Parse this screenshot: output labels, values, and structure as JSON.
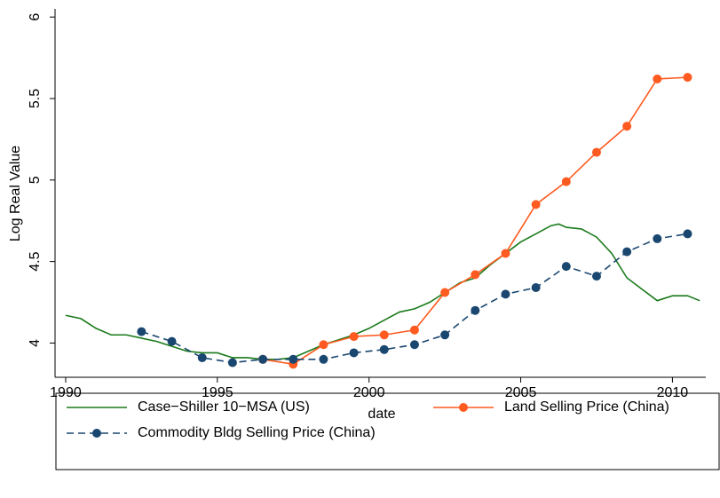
{
  "chart_data": {
    "type": "line",
    "xlabel": "date",
    "ylabel": "Log Real Value",
    "xlim": [
      1989.65,
      2011.1
    ],
    "xticks": [
      1990,
      1995,
      2000,
      2005,
      2010
    ],
    "ylim": [
      3.79,
      6.05
    ],
    "yticks": [
      4,
      4.5,
      5,
      5.5,
      6
    ],
    "grid": false,
    "legend": "bottom",
    "series": [
      {
        "name": "Case−Shiller 10−MSA (US)",
        "color": "#1a7a1a",
        "style": "solid",
        "markers": false,
        "x": [
          1990,
          1990.5,
          1991,
          1991.5,
          1992,
          1992.5,
          1993,
          1993.5,
          1994,
          1994.5,
          1995,
          1995.5,
          1996,
          1996.5,
          1997,
          1997.5,
          1998,
          1998.5,
          1999,
          1999.5,
          2000,
          2000.5,
          2001,
          2001.5,
          2002,
          2002.5,
          2003,
          2003.5,
          2004,
          2004.5,
          2005,
          2005.5,
          2006,
          2006.25,
          2006.5,
          2007,
          2007.5,
          2008,
          2008.5,
          2009,
          2009.5,
          2010,
          2010.5,
          2010.9
        ],
        "values": [
          4.17,
          4.15,
          4.09,
          4.05,
          4.05,
          4.03,
          4.01,
          3.98,
          3.95,
          3.94,
          3.94,
          3.91,
          3.91,
          3.9,
          3.9,
          3.91,
          3.95,
          3.99,
          4.02,
          4.05,
          4.09,
          4.14,
          4.19,
          4.21,
          4.25,
          4.31,
          4.37,
          4.4,
          4.48,
          4.55,
          4.62,
          4.67,
          4.72,
          4.73,
          4.71,
          4.7,
          4.65,
          4.55,
          4.4,
          4.33,
          4.26,
          4.29,
          4.29,
          4.26
        ]
      },
      {
        "name": "Land Selling Price (China)",
        "color": "#ff5a1f",
        "style": "solid",
        "markers": true,
        "x": [
          1996.5,
          1997.5,
          1998.5,
          1999.5,
          2000.5,
          2001.5,
          2002.5,
          2003.5,
          2004.5,
          2005.5,
          2006.5,
          2007.5,
          2008.5,
          2009.5,
          2010.5
        ],
        "values": [
          3.9,
          3.87,
          3.99,
          4.04,
          4.05,
          4.08,
          4.31,
          4.42,
          4.55,
          4.85,
          4.99,
          5.17,
          5.33,
          5.62,
          5.63
        ]
      },
      {
        "name": "Commodity Bldg Selling Price (China)",
        "color": "#1a476f",
        "style": "dashed",
        "markers": true,
        "x": [
          1992.5,
          1993.5,
          1994.5,
          1995.5,
          1996.5,
          1997.5,
          1998.5,
          1999.5,
          2000.5,
          2001.5,
          2002.5,
          2003.5,
          2004.5,
          2005.5,
          2006.5,
          2007.5,
          2008.5,
          2009.5,
          2010.5
        ],
        "values": [
          4.07,
          4.01,
          3.91,
          3.88,
          3.9,
          3.9,
          3.9,
          3.94,
          3.96,
          3.99,
          4.05,
          4.2,
          4.3,
          4.34,
          4.47,
          4.41,
          4.56,
          4.64,
          4.67
        ]
      }
    ]
  }
}
